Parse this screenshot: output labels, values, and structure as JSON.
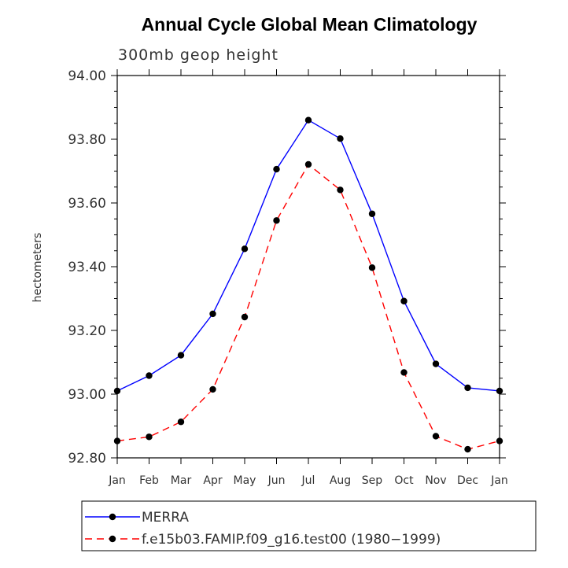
{
  "chart_data": {
    "type": "line",
    "title": "Annual Cycle Global Mean Climatology",
    "subtitle": "300mb geop height",
    "ylabel": "hectometers",
    "xlabel": "",
    "categories": [
      "Jan",
      "Feb",
      "Mar",
      "Apr",
      "May",
      "Jun",
      "Jul",
      "Aug",
      "Sep",
      "Oct",
      "Nov",
      "Dec",
      "Jan"
    ],
    "ylim": [
      92.8,
      94.0
    ],
    "yticks": [
      "92.80",
      "93.00",
      "93.20",
      "93.40",
      "93.60",
      "93.80",
      "94.00"
    ],
    "series": [
      {
        "name": "MERRA",
        "color": "#0000ff",
        "dash": "solid",
        "values": [
          93.01,
          93.058,
          93.122,
          93.252,
          93.456,
          93.706,
          93.86,
          93.802,
          93.566,
          93.292,
          93.095,
          93.02,
          93.01
        ]
      },
      {
        "name": "f.e15b03.FAMIP.f09_g16.test00 (1980−1999)",
        "color": "#ff0000",
        "dash": "dashed",
        "values": [
          92.853,
          92.866,
          92.913,
          93.015,
          93.242,
          93.545,
          93.721,
          93.641,
          93.397,
          93.068,
          92.868,
          92.827,
          92.853
        ]
      }
    ],
    "grid": false,
    "legend_position": "bottom-left"
  }
}
